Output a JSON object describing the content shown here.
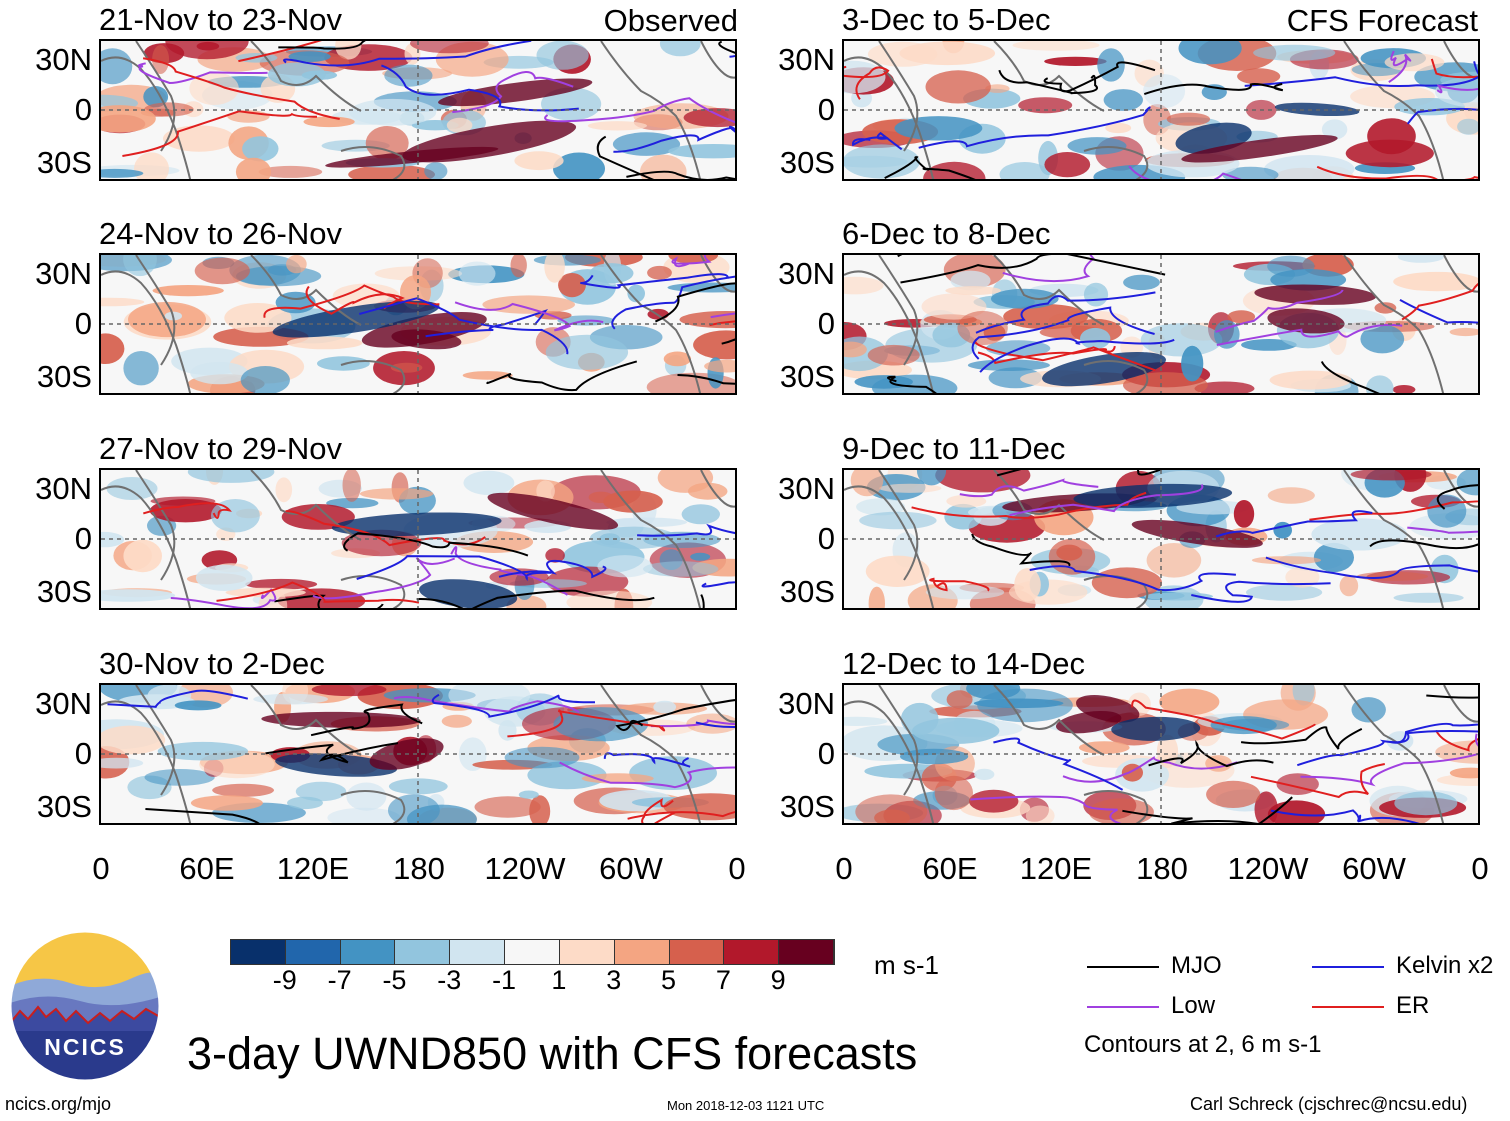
{
  "chart_data": {
    "type": "heatmap",
    "title": "3-day UWND850 with CFS forecasts",
    "variable": "UWND850",
    "units": "m s-1",
    "xlabel": "",
    "ylabel": "",
    "x_ticks": [
      "0",
      "60E",
      "120E",
      "180",
      "120W",
      "60W",
      "0"
    ],
    "y_ticks": [
      "30N",
      "0",
      "30S"
    ],
    "left_column_label": "Observed",
    "right_column_label": "CFS Forecast",
    "panels_observed": [
      "21-Nov to 23-Nov",
      "24-Nov to 26-Nov",
      "27-Nov to 29-Nov",
      "30-Nov to 2-Dec"
    ],
    "panels_forecast": [
      "3-Dec to 5-Dec",
      "6-Dec to 8-Dec",
      "9-Dec to 11-Dec",
      "12-Dec to 14-Dec"
    ],
    "colorbar": {
      "labels": [
        "-9",
        "-7",
        "-5",
        "-3",
        "-1",
        "1",
        "3",
        "5",
        "7",
        "9"
      ],
      "colors": [
        "#08306b",
        "#2166ac",
        "#4393c3",
        "#92c5de",
        "#d1e5f0",
        "#f7f7f7",
        "#fddbc7",
        "#f4a582",
        "#d6604d",
        "#b2182b",
        "#67001f"
      ]
    },
    "legend": [
      {
        "name": "MJO",
        "color": "#000000"
      },
      {
        "name": "Kelvin x2",
        "color": "#1f1fdd"
      },
      {
        "name": "Low",
        "color": "#a040e0"
      },
      {
        "name": "ER",
        "color": "#e01f1f"
      }
    ],
    "contour_note": "Contours at 2, 6 m s-1"
  },
  "logo_text": "NCICS",
  "site": "ncics.org/mjo",
  "timestamp": "Mon 2018-12-03 1121 UTC",
  "credit": "Carl Schreck (cjschrec@ncsu.edu)"
}
